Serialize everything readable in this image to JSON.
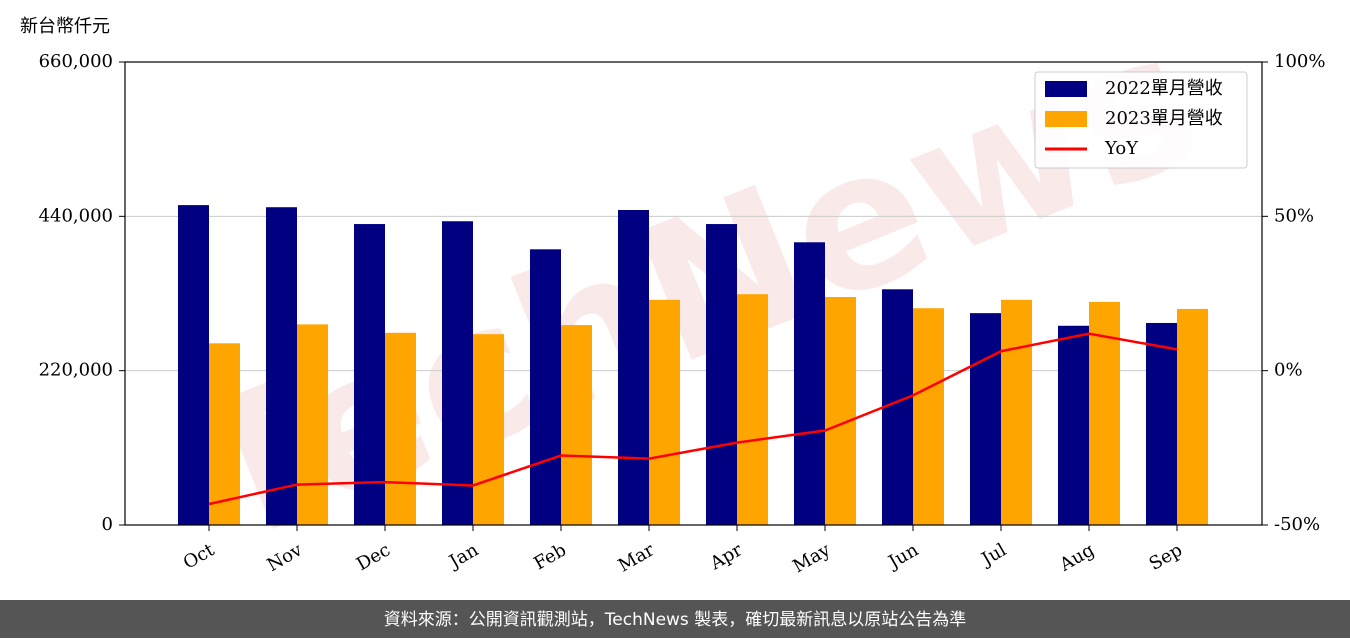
{
  "chart_data": {
    "type": "bar",
    "y_label": "新台幣仟元",
    "categories": [
      "Oct",
      "Nov",
      "Dec",
      "Jan",
      "Feb",
      "Mar",
      "Apr",
      "May",
      "Jun",
      "Jul",
      "Aug",
      "Sep"
    ],
    "series": [
      {
        "name": "2022單月營收",
        "color": "#000080",
        "values": [
          456000,
          453000,
          429000,
          433000,
          393000,
          449000,
          429000,
          403000,
          336000,
          302000,
          284000,
          288000
        ]
      },
      {
        "name": "2023單月營收",
        "color": "#ffa500",
        "values": [
          259000,
          286000,
          274000,
          272000,
          285000,
          321000,
          329000,
          325000,
          309000,
          321000,
          318000,
          308000
        ]
      },
      {
        "name": "YoY",
        "type": "line",
        "axis": "y2",
        "color": "#ff0000",
        "values": [
          -43.2,
          -36.9,
          -36.1,
          -37.2,
          -27.5,
          -28.5,
          -23.3,
          -19.4,
          -8.0,
          6.3,
          12.0,
          6.9
        ]
      }
    ],
    "ylim": [
      0,
      660000
    ],
    "yticks": [
      0,
      {
        "value": 220000,
        "label": "220,000"
      },
      {
        "value": 440000,
        "label": "440,000"
      },
      {
        "value": 660000,
        "label": "660,000"
      }
    ],
    "y2lim": [
      -50,
      100
    ],
    "y2ticks": [
      {
        "value": -50,
        "label": "-50%"
      },
      {
        "value": 0,
        "label": "0%"
      },
      {
        "value": 50,
        "label": "50%"
      },
      {
        "value": 100,
        "label": "100%"
      }
    ],
    "grid": true,
    "legend": "upper right",
    "watermark": "TechNews",
    "footer": "資料來源：公開資訊觀測站，TechNews 製表，確切最新訊息以原站公告為準"
  }
}
